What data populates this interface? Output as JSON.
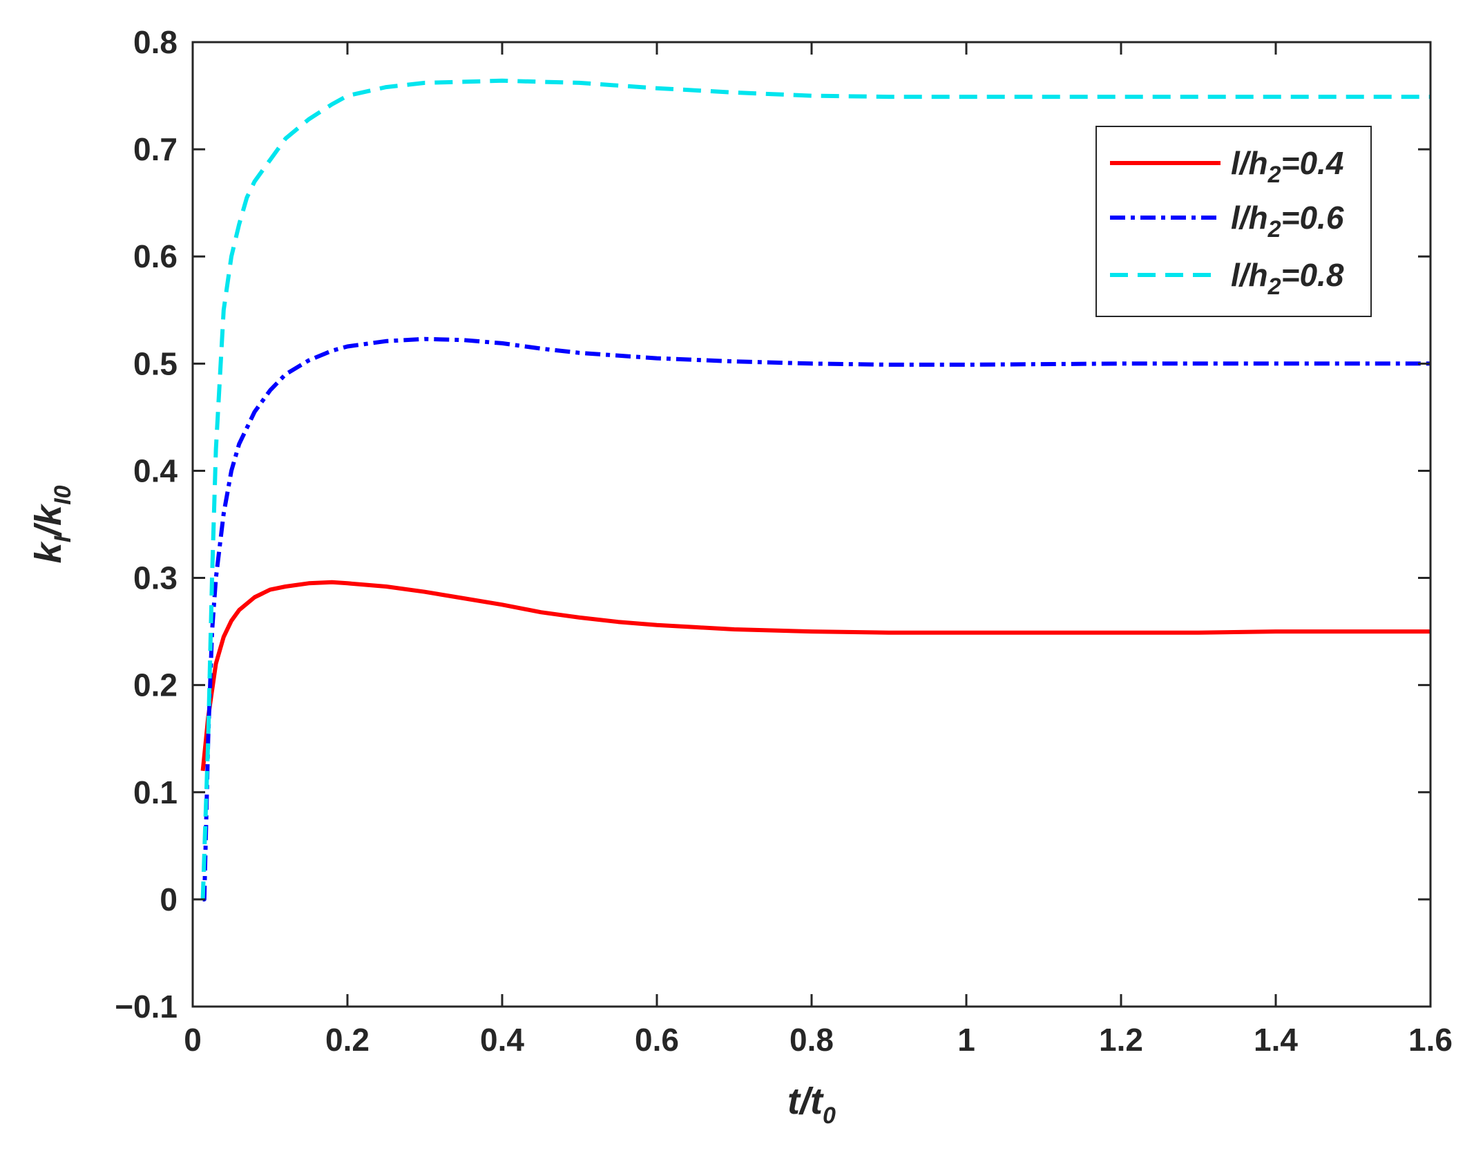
{
  "chart_data": {
    "type": "line",
    "title": "",
    "xlabel": {
      "base": "t/t",
      "sub": "0"
    },
    "ylabel": {
      "base": "k",
      "sub1": "I",
      "mid": "/k",
      "sub2": "I0"
    },
    "xlim": [
      0,
      1.6
    ],
    "ylim": [
      -0.1,
      0.8
    ],
    "x_ticks": [
      0,
      0.2,
      0.4,
      0.6,
      0.8,
      1,
      1.2,
      1.4,
      1.6
    ],
    "x_tick_labels": [
      "0",
      "0.2",
      "0.4",
      "0.6",
      "0.8",
      "1",
      "1.2",
      "1.4",
      "1.6"
    ],
    "y_ticks": [
      -0.1,
      0,
      0.1,
      0.2,
      0.3,
      0.4,
      0.5,
      0.6,
      0.7,
      0.8
    ],
    "y_tick_labels": [
      "−0.1",
      "0",
      "0.1",
      "0.2",
      "0.3",
      "0.4",
      "0.5",
      "0.6",
      "0.7",
      "0.8"
    ],
    "grid": false,
    "legend_position": "top-right",
    "series": [
      {
        "name": {
          "pre": "l/h",
          "sub": "2",
          "post": "=0.4"
        },
        "color": "#ff0000",
        "style": "solid",
        "x": [
          0.013,
          0.02,
          0.03,
          0.04,
          0.05,
          0.06,
          0.08,
          0.1,
          0.12,
          0.15,
          0.18,
          0.2,
          0.25,
          0.3,
          0.35,
          0.4,
          0.45,
          0.5,
          0.55,
          0.6,
          0.65,
          0.7,
          0.8,
          0.9,
          1.0,
          1.1,
          1.2,
          1.3,
          1.4,
          1.5,
          1.6
        ],
        "y": [
          0.12,
          0.17,
          0.22,
          0.245,
          0.26,
          0.27,
          0.282,
          0.289,
          0.292,
          0.295,
          0.296,
          0.295,
          0.292,
          0.287,
          0.281,
          0.275,
          0.268,
          0.263,
          0.259,
          0.256,
          0.254,
          0.252,
          0.25,
          0.249,
          0.249,
          0.249,
          0.249,
          0.249,
          0.25,
          0.25,
          0.25
        ]
      },
      {
        "name": {
          "pre": "l/h",
          "sub": "2",
          "post": "=0.6"
        },
        "color": "#0000ff",
        "style": "dashdot",
        "x": [
          0.013,
          0.015,
          0.02,
          0.025,
          0.03,
          0.04,
          0.05,
          0.06,
          0.07,
          0.08,
          0.1,
          0.12,
          0.15,
          0.18,
          0.2,
          0.25,
          0.3,
          0.35,
          0.4,
          0.45,
          0.5,
          0.6,
          0.7,
          0.8,
          0.9,
          1.0,
          1.2,
          1.4,
          1.6
        ],
        "y": [
          0.0,
          0.0,
          0.15,
          0.25,
          0.3,
          0.36,
          0.4,
          0.425,
          0.44,
          0.455,
          0.475,
          0.49,
          0.503,
          0.512,
          0.516,
          0.521,
          0.523,
          0.522,
          0.519,
          0.514,
          0.51,
          0.505,
          0.502,
          0.5,
          0.499,
          0.499,
          0.5,
          0.5,
          0.5
        ]
      },
      {
        "name": {
          "pre": "l/h",
          "sub": "2",
          "post": "=0.8"
        },
        "color": "#00e5ee",
        "style": "dashed",
        "x": [
          0.013,
          0.02,
          0.025,
          0.03,
          0.04,
          0.05,
          0.06,
          0.07,
          0.08,
          0.1,
          0.12,
          0.15,
          0.18,
          0.2,
          0.25,
          0.3,
          0.35,
          0.4,
          0.45,
          0.5,
          0.6,
          0.7,
          0.8,
          0.9,
          1.0,
          1.2,
          1.4,
          1.6
        ],
        "y": [
          0.0,
          0.15,
          0.3,
          0.42,
          0.55,
          0.6,
          0.63,
          0.655,
          0.67,
          0.69,
          0.71,
          0.728,
          0.742,
          0.75,
          0.758,
          0.762,
          0.763,
          0.764,
          0.763,
          0.762,
          0.757,
          0.753,
          0.75,
          0.749,
          0.749,
          0.749,
          0.749,
          0.749
        ]
      }
    ]
  }
}
